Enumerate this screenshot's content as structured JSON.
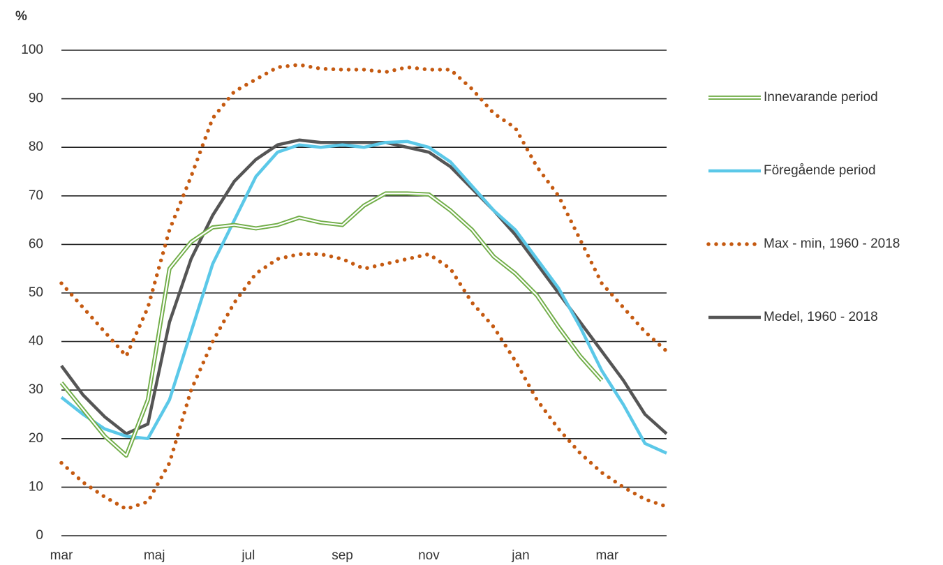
{
  "chart_data": {
    "type": "line",
    "y_label": "%",
    "x": [
      0,
      2,
      4,
      6,
      8,
      10,
      12,
      14,
      16,
      18,
      20,
      22,
      24,
      26,
      28,
      30,
      32,
      34,
      36,
      38,
      40,
      42,
      44,
      46,
      48,
      50,
      52,
      54,
      56
    ],
    "xlim": [
      0,
      56
    ],
    "xticks": [
      {
        "value": 0,
        "label": "mar"
      },
      {
        "value": 8.6,
        "label": "maj"
      },
      {
        "value": 17.3,
        "label": "jul"
      },
      {
        "value": 26,
        "label": "sep"
      },
      {
        "value": 34,
        "label": "nov"
      },
      {
        "value": 42.5,
        "label": "jan"
      },
      {
        "value": 50.5,
        "label": "mar"
      }
    ],
    "ylim": [
      0,
      100
    ],
    "yticks": [
      0,
      10,
      20,
      30,
      40,
      50,
      60,
      70,
      80,
      90,
      100
    ],
    "grid": true,
    "legend": "right",
    "series": [
      {
        "name": "Innevarande period",
        "color": "#70ad47",
        "style": "double",
        "values": [
          31.5,
          26,
          20.5,
          16.5,
          28,
          55,
          60.5,
          63.5,
          64,
          63.3,
          64,
          65.5,
          64.5,
          64,
          68,
          70.5,
          70.5,
          70.3,
          67,
          63,
          57.5,
          54,
          49.5,
          43,
          37,
          32,
          null,
          null,
          null
        ]
      },
      {
        "name": "Föregående period",
        "color": "#5bc8e8",
        "style": "solid",
        "values": [
          28.5,
          25,
          22,
          20.5,
          20,
          28,
          42,
          56,
          65,
          74,
          79,
          80.5,
          80,
          80.5,
          80,
          81,
          81.2,
          80,
          77,
          72,
          67,
          63,
          57,
          51,
          43,
          34,
          27,
          19,
          17
        ]
      },
      {
        "name": "Max - min, 1960 - 2018",
        "color": "#c55a11",
        "style": "dotted",
        "max": [
          52,
          47,
          42,
          37,
          47,
          63,
          74,
          86,
          91.5,
          94,
          96.5,
          97,
          96.2,
          96,
          96,
          95.5,
          96.5,
          96,
          96,
          92,
          87,
          84,
          76,
          70,
          61,
          52,
          47,
          42,
          38
        ],
        "min": [
          15,
          11,
          8,
          5.5,
          7,
          15,
          30,
          40,
          48,
          54,
          57,
          58,
          58,
          57,
          55,
          56,
          57,
          58,
          55,
          48,
          43,
          36,
          28,
          22,
          17,
          13,
          10,
          7.5,
          6
        ]
      },
      {
        "name": "Medel, 1960 - 2018",
        "color": "#555555",
        "style": "solid",
        "values": [
          35,
          29,
          24.5,
          21,
          23,
          44,
          57,
          66,
          73,
          77.5,
          80.5,
          81.5,
          81,
          81,
          81,
          81,
          80,
          79,
          76,
          71.5,
          67,
          62,
          56,
          50,
          44,
          38,
          32,
          25,
          21
        ]
      }
    ]
  }
}
